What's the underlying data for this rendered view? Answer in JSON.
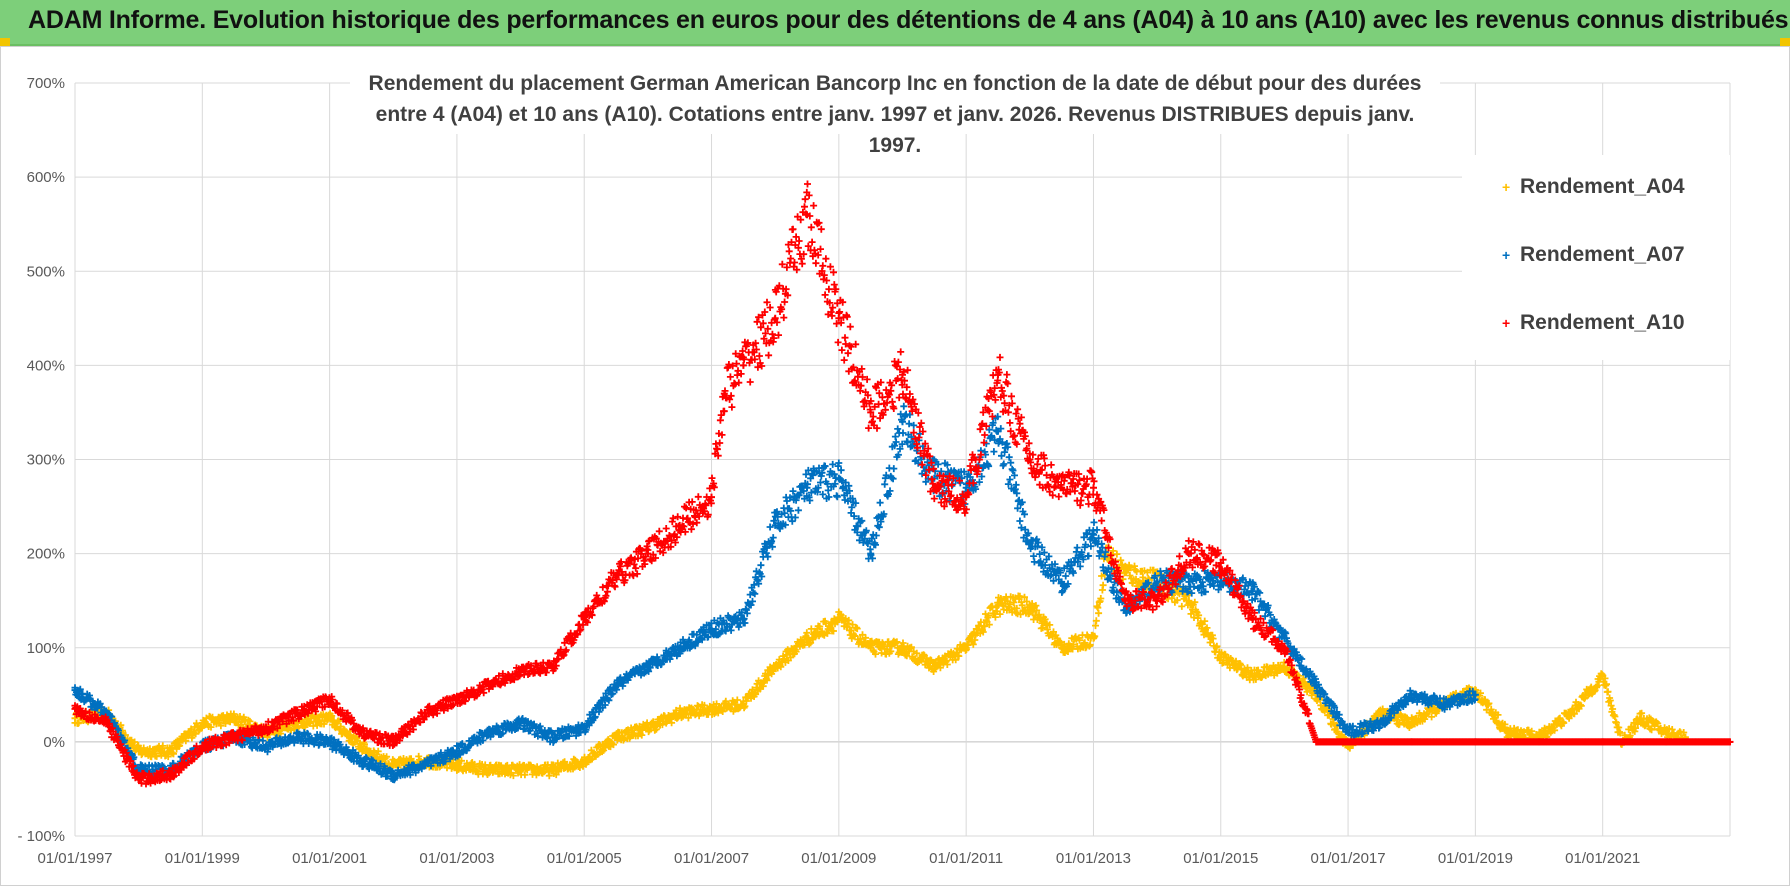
{
  "banner": {
    "title": "ADAM Informe. Evolution historique des performances en euros pour des détentions de 4 ans (A04) à 10 ans (A10) avec les revenus connus distribués"
  },
  "colors": {
    "banner_bg": "#7dcf7a",
    "accent": "#f2c500",
    "a04": "#ffc000",
    "a07": "#0070c0",
    "a10": "#ff0000",
    "grid": "#d9d9d9"
  },
  "chart_data": {
    "type": "scatter",
    "title_line1": "Rendement du placement German American Bancorp Inc en fonction de la date de début pour des durées",
    "title_line2": "entre 4 (A04) et 10 ans (A10).  Cotations entre janv. 1997 et janv. 2026. Revenus DISTRIBUES  depuis janv. 1997.",
    "xlabel": "",
    "ylabel": "",
    "xlim": [
      1997.0,
      2023.0
    ],
    "ylim": [
      -100,
      700
    ],
    "y_ticks": [
      "700%",
      "600%",
      "500%",
      "400%",
      "300%",
      "200%",
      "100%",
      "0%",
      "- 100%"
    ],
    "y_tick_values": [
      700,
      600,
      500,
      400,
      300,
      200,
      100,
      0,
      -100
    ],
    "x_ticks": [
      "01/01/1997",
      "01/01/1999",
      "01/01/2001",
      "01/01/2003",
      "01/01/2005",
      "01/01/2007",
      "01/01/2009",
      "01/01/2011",
      "01/01/2013",
      "01/01/2015",
      "01/01/2017",
      "01/01/2019",
      "01/01/2021"
    ],
    "x_tick_values": [
      1997,
      1999,
      2001,
      2003,
      2005,
      2007,
      2009,
      2011,
      2013,
      2015,
      2017,
      2019,
      2021
    ],
    "legend_position": "top-right",
    "series": [
      {
        "name": "Rendement_A04",
        "color": "#ffc000",
        "points": [
          [
            1997.0,
            25
          ],
          [
            1997.5,
            30
          ],
          [
            1998.0,
            -10
          ],
          [
            1998.5,
            -10
          ],
          [
            1999.0,
            20
          ],
          [
            1999.5,
            25
          ],
          [
            2000.0,
            10
          ],
          [
            2000.5,
            20
          ],
          [
            2001.0,
            25
          ],
          [
            2001.5,
            -5
          ],
          [
            2002.0,
            -25
          ],
          [
            2002.5,
            -20
          ],
          [
            2003.0,
            -25
          ],
          [
            2003.5,
            -30
          ],
          [
            2004.0,
            -30
          ],
          [
            2004.5,
            -30
          ],
          [
            2005.0,
            -20
          ],
          [
            2005.5,
            5
          ],
          [
            2006.0,
            15
          ],
          [
            2006.5,
            30
          ],
          [
            2007.0,
            35
          ],
          [
            2007.5,
            40
          ],
          [
            2008.0,
            80
          ],
          [
            2008.5,
            110
          ],
          [
            2009.0,
            130
          ],
          [
            2009.5,
            100
          ],
          [
            2010.0,
            100
          ],
          [
            2010.5,
            80
          ],
          [
            2011.0,
            100
          ],
          [
            2011.5,
            145
          ],
          [
            2012.0,
            145
          ],
          [
            2012.5,
            100
          ],
          [
            2013.0,
            110
          ],
          [
            2013.2,
            200
          ],
          [
            2013.5,
            180
          ],
          [
            2014.0,
            170
          ],
          [
            2014.5,
            150
          ],
          [
            2015.0,
            90
          ],
          [
            2015.5,
            70
          ],
          [
            2016.0,
            80
          ],
          [
            2016.5,
            50
          ],
          [
            2017.0,
            -5
          ],
          [
            2017.5,
            30
          ],
          [
            2018.0,
            20
          ],
          [
            2018.5,
            40
          ],
          [
            2019.0,
            55
          ],
          [
            2019.5,
            10
          ],
          [
            2020.0,
            5
          ],
          [
            2020.5,
            30
          ],
          [
            2021.0,
            70
          ],
          [
            2021.3,
            0
          ],
          [
            2021.6,
            25
          ],
          [
            2022.0,
            10
          ],
          [
            2022.3,
            5
          ]
        ]
      },
      {
        "name": "Rendement_A07",
        "color": "#0070c0",
        "points": [
          [
            1997.0,
            55
          ],
          [
            1997.5,
            30
          ],
          [
            1998.0,
            -30
          ],
          [
            1998.5,
            -30
          ],
          [
            1999.0,
            -5
          ],
          [
            1999.5,
            5
          ],
          [
            2000.0,
            -5
          ],
          [
            2000.5,
            5
          ],
          [
            2001.0,
            0
          ],
          [
            2001.5,
            -20
          ],
          [
            2002.0,
            -35
          ],
          [
            2002.5,
            -25
          ],
          [
            2003.0,
            -10
          ],
          [
            2003.5,
            10
          ],
          [
            2004.0,
            20
          ],
          [
            2004.5,
            5
          ],
          [
            2005.0,
            15
          ],
          [
            2005.5,
            60
          ],
          [
            2006.0,
            80
          ],
          [
            2006.5,
            100
          ],
          [
            2007.0,
            120
          ],
          [
            2007.5,
            130
          ],
          [
            2008.0,
            230
          ],
          [
            2008.5,
            270
          ],
          [
            2009.0,
            280
          ],
          [
            2009.5,
            200
          ],
          [
            2010.0,
            340
          ],
          [
            2010.5,
            280
          ],
          [
            2011.0,
            270
          ],
          [
            2011.5,
            330
          ],
          [
            2012.0,
            210
          ],
          [
            2012.5,
            170
          ],
          [
            2013.0,
            220
          ],
          [
            2013.5,
            140
          ],
          [
            2014.0,
            170
          ],
          [
            2014.5,
            170
          ],
          [
            2015.0,
            170
          ],
          [
            2015.5,
            160
          ],
          [
            2016.0,
            110
          ],
          [
            2016.5,
            60
          ],
          [
            2017.0,
            10
          ],
          [
            2017.5,
            20
          ],
          [
            2018.0,
            50
          ],
          [
            2018.5,
            40
          ],
          [
            2019.0,
            50
          ]
        ]
      },
      {
        "name": "Rendement_A10",
        "color": "#ff0000",
        "points": [
          [
            1997.0,
            35
          ],
          [
            1997.5,
            20
          ],
          [
            1998.0,
            -40
          ],
          [
            1998.5,
            -35
          ],
          [
            1999.0,
            -5
          ],
          [
            1999.5,
            5
          ],
          [
            2000.0,
            15
          ],
          [
            2000.5,
            30
          ],
          [
            2001.0,
            45
          ],
          [
            2001.5,
            10
          ],
          [
            2002.0,
            0
          ],
          [
            2002.5,
            30
          ],
          [
            2003.0,
            45
          ],
          [
            2003.5,
            60
          ],
          [
            2004.0,
            75
          ],
          [
            2004.5,
            80
          ],
          [
            2005.0,
            130
          ],
          [
            2005.5,
            175
          ],
          [
            2006.0,
            200
          ],
          [
            2006.5,
            230
          ],
          [
            2007.0,
            260
          ],
          [
            2007.2,
            370
          ],
          [
            2007.5,
            400
          ],
          [
            2008.0,
            450
          ],
          [
            2008.5,
            560
          ],
          [
            2009.0,
            450
          ],
          [
            2009.5,
            350
          ],
          [
            2010.0,
            390
          ],
          [
            2010.5,
            270
          ],
          [
            2011.0,
            260
          ],
          [
            2011.5,
            390
          ],
          [
            2012.0,
            300
          ],
          [
            2012.5,
            270
          ],
          [
            2013.0,
            270
          ],
          [
            2013.5,
            150
          ],
          [
            2014.0,
            150
          ],
          [
            2014.5,
            200
          ],
          [
            2015.0,
            190
          ],
          [
            2015.5,
            130
          ],
          [
            2016.0,
            100
          ],
          [
            2016.5,
            0
          ],
          [
            2017.0,
            0
          ],
          [
            2018.0,
            0
          ],
          [
            2019.0,
            0
          ],
          [
            2020.0,
            0
          ],
          [
            2021.0,
            0
          ],
          [
            2022.0,
            0
          ],
          [
            2023.0,
            0
          ]
        ]
      }
    ]
  }
}
